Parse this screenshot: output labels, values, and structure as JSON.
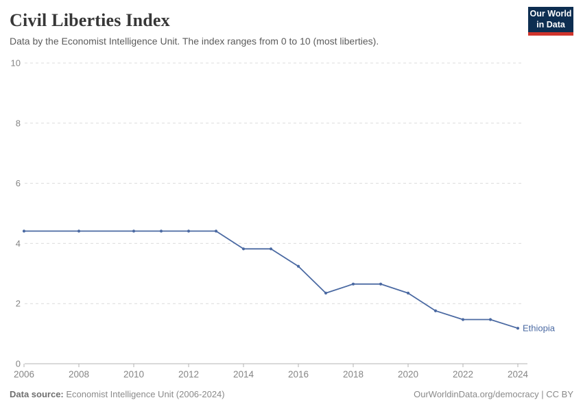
{
  "header": {
    "title": "Civil Liberties Index",
    "subtitle": "Data by the Economist Intelligence Unit. The index ranges from 0 to 10 (most liberties).",
    "logo": {
      "line1": "Our World",
      "line2": "in Data",
      "background": "#0d2e51",
      "accent": "#d0342c"
    }
  },
  "chart_data": {
    "type": "line",
    "title": "Civil Liberties Index",
    "xlabel": "",
    "ylabel": "",
    "xlim": [
      2006,
      2024
    ],
    "ylim": [
      0,
      10
    ],
    "grid": "horizontal-dashed",
    "legend_position": "end-of-line-label",
    "x_ticks": [
      2006,
      2008,
      2010,
      2012,
      2014,
      2016,
      2018,
      2020,
      2022,
      2024
    ],
    "y_ticks": [
      0,
      2,
      4,
      6,
      8,
      10
    ],
    "series": [
      {
        "name": "Ethiopia",
        "color": "#4a69a2",
        "points": [
          [
            2006,
            4.41
          ],
          [
            2008,
            4.41
          ],
          [
            2010,
            4.41
          ],
          [
            2011,
            4.41
          ],
          [
            2012,
            4.41
          ],
          [
            2013,
            4.41
          ],
          [
            2014,
            3.82
          ],
          [
            2015,
            3.82
          ],
          [
            2016,
            3.24
          ],
          [
            2017,
            2.35
          ],
          [
            2018,
            2.65
          ],
          [
            2019,
            2.65
          ],
          [
            2020,
            2.35
          ],
          [
            2021,
            1.76
          ],
          [
            2022,
            1.47
          ],
          [
            2023,
            1.47
          ],
          [
            2024,
            1.18
          ]
        ]
      }
    ],
    "style": {
      "grid_color": "#dcdcdc",
      "axis_color": "#b3b3b3",
      "tick_label_color": "#858585"
    }
  },
  "footer": {
    "datasource_label": "Data source:",
    "datasource_text": "Economist Intelligence Unit (2006-2024)",
    "right_text": "OurWorldinData.org/democracy | CC BY"
  }
}
